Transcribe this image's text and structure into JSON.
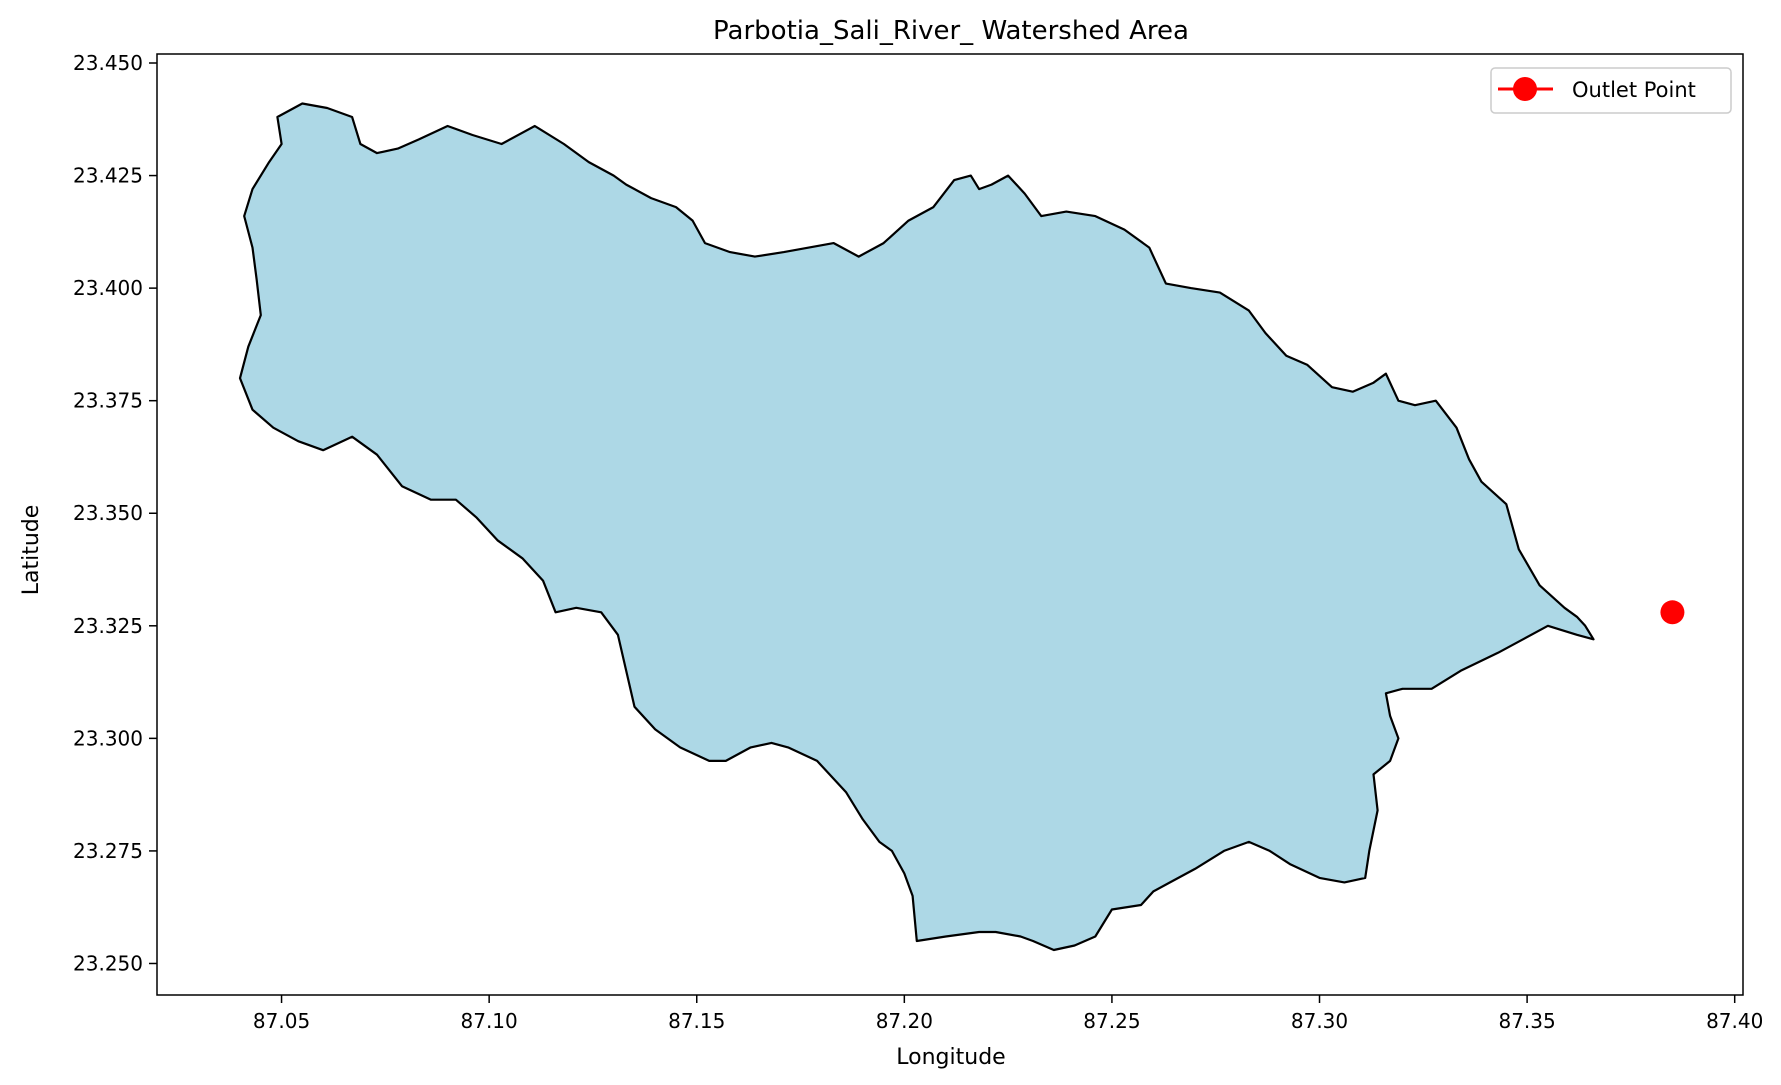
{
  "chart_data": {
    "type": "map",
    "title": "Parbotia_Sali_River_ Watershed Area",
    "xlabel": "Longitude",
    "ylabel": "Latitude",
    "xlim": [
      87.02,
      87.402
    ],
    "ylim": [
      23.243,
      23.452
    ],
    "xticks": [
      "87.05",
      "87.10",
      "87.15",
      "87.20",
      "87.25",
      "87.30",
      "87.35",
      "87.40"
    ],
    "yticks": [
      "23.250",
      "23.275",
      "23.300",
      "23.325",
      "23.350",
      "23.375",
      "23.400",
      "23.425",
      "23.450"
    ],
    "fill_color": "#add8e6",
    "edge_color": "#000000",
    "legend": {
      "label": "Outlet Point",
      "position": "upper right"
    },
    "outlet_point": {
      "x": 87.385,
      "y": 23.328,
      "color": "#ff0000"
    },
    "watershed_boundary": [
      [
        87.049,
        23.438
      ],
      [
        87.055,
        23.441
      ],
      [
        87.061,
        23.44
      ],
      [
        87.067,
        23.438
      ],
      [
        87.069,
        23.432
      ],
      [
        87.073,
        23.43
      ],
      [
        87.078,
        23.431
      ],
      [
        87.083,
        23.433
      ],
      [
        87.09,
        23.436
      ],
      [
        87.096,
        23.434
      ],
      [
        87.103,
        23.432
      ],
      [
        87.111,
        23.436
      ],
      [
        87.118,
        23.432
      ],
      [
        87.124,
        23.428
      ],
      [
        87.13,
        23.425
      ],
      [
        87.133,
        23.423
      ],
      [
        87.139,
        23.42
      ],
      [
        87.145,
        23.418
      ],
      [
        87.149,
        23.415
      ],
      [
        87.152,
        23.41
      ],
      [
        87.158,
        23.408
      ],
      [
        87.164,
        23.407
      ],
      [
        87.171,
        23.408
      ],
      [
        87.177,
        23.409
      ],
      [
        87.183,
        23.41
      ],
      [
        87.189,
        23.407
      ],
      [
        87.195,
        23.41
      ],
      [
        87.201,
        23.415
      ],
      [
        87.207,
        23.418
      ],
      [
        87.212,
        23.424
      ],
      [
        87.216,
        23.425
      ],
      [
        87.218,
        23.422
      ],
      [
        87.221,
        23.423
      ],
      [
        87.225,
        23.425
      ],
      [
        87.229,
        23.421
      ],
      [
        87.233,
        23.416
      ],
      [
        87.239,
        23.417
      ],
      [
        87.246,
        23.416
      ],
      [
        87.253,
        23.413
      ],
      [
        87.259,
        23.409
      ],
      [
        87.263,
        23.401
      ],
      [
        87.269,
        23.4
      ],
      [
        87.276,
        23.399
      ],
      [
        87.283,
        23.395
      ],
      [
        87.287,
        23.39
      ],
      [
        87.292,
        23.385
      ],
      [
        87.297,
        23.383
      ],
      [
        87.303,
        23.378
      ],
      [
        87.308,
        23.377
      ],
      [
        87.313,
        23.379
      ],
      [
        87.316,
        23.381
      ],
      [
        87.319,
        23.375
      ],
      [
        87.323,
        23.374
      ],
      [
        87.328,
        23.375
      ],
      [
        87.333,
        23.369
      ],
      [
        87.336,
        23.362
      ],
      [
        87.339,
        23.357
      ],
      [
        87.345,
        23.352
      ],
      [
        87.348,
        23.342
      ],
      [
        87.353,
        23.334
      ],
      [
        87.359,
        23.329
      ],
      [
        87.362,
        23.327
      ],
      [
        87.364,
        23.325
      ],
      [
        87.366,
        23.322
      ],
      [
        87.362,
        23.323
      ],
      [
        87.355,
        23.325
      ],
      [
        87.349,
        23.322
      ],
      [
        87.343,
        23.319
      ],
      [
        87.334,
        23.315
      ],
      [
        87.327,
        23.311
      ],
      [
        87.32,
        23.311
      ],
      [
        87.316,
        23.31
      ],
      [
        87.317,
        23.305
      ],
      [
        87.319,
        23.3
      ],
      [
        87.317,
        23.295
      ],
      [
        87.313,
        23.292
      ],
      [
        87.314,
        23.284
      ],
      [
        87.312,
        23.275
      ],
      [
        87.311,
        23.269
      ],
      [
        87.306,
        23.268
      ],
      [
        87.3,
        23.269
      ],
      [
        87.293,
        23.272
      ],
      [
        87.288,
        23.275
      ],
      [
        87.283,
        23.277
      ],
      [
        87.277,
        23.275
      ],
      [
        87.27,
        23.271
      ],
      [
        87.264,
        23.268
      ],
      [
        87.26,
        23.266
      ],
      [
        87.257,
        23.263
      ],
      [
        87.25,
        23.262
      ],
      [
        87.246,
        23.256
      ],
      [
        87.241,
        23.254
      ],
      [
        87.236,
        23.253
      ],
      [
        87.231,
        23.255
      ],
      [
        87.228,
        23.256
      ],
      [
        87.222,
        23.257
      ],
      [
        87.218,
        23.257
      ],
      [
        87.21,
        23.256
      ],
      [
        87.203,
        23.255
      ],
      [
        87.202,
        23.265
      ],
      [
        87.2,
        23.27
      ],
      [
        87.197,
        23.275
      ],
      [
        87.194,
        23.277
      ],
      [
        87.19,
        23.282
      ],
      [
        87.186,
        23.288
      ],
      [
        87.179,
        23.295
      ],
      [
        87.172,
        23.298
      ],
      [
        87.168,
        23.299
      ],
      [
        87.163,
        23.298
      ],
      [
        87.157,
        23.295
      ],
      [
        87.153,
        23.295
      ],
      [
        87.146,
        23.298
      ],
      [
        87.14,
        23.302
      ],
      [
        87.135,
        23.307
      ],
      [
        87.133,
        23.315
      ],
      [
        87.131,
        23.323
      ],
      [
        87.127,
        23.328
      ],
      [
        87.121,
        23.329
      ],
      [
        87.116,
        23.328
      ],
      [
        87.113,
        23.335
      ],
      [
        87.108,
        23.34
      ],
      [
        87.102,
        23.344
      ],
      [
        87.097,
        23.349
      ],
      [
        87.092,
        23.353
      ],
      [
        87.086,
        23.353
      ],
      [
        87.079,
        23.356
      ],
      [
        87.073,
        23.363
      ],
      [
        87.067,
        23.367
      ],
      [
        87.06,
        23.364
      ],
      [
        87.054,
        23.366
      ],
      [
        87.048,
        23.369
      ],
      [
        87.043,
        23.373
      ],
      [
        87.04,
        23.38
      ],
      [
        87.042,
        23.387
      ],
      [
        87.045,
        23.394
      ],
      [
        87.044,
        23.402
      ],
      [
        87.043,
        23.409
      ],
      [
        87.041,
        23.416
      ],
      [
        87.043,
        23.422
      ],
      [
        87.047,
        23.428
      ],
      [
        87.05,
        23.432
      ]
    ]
  }
}
